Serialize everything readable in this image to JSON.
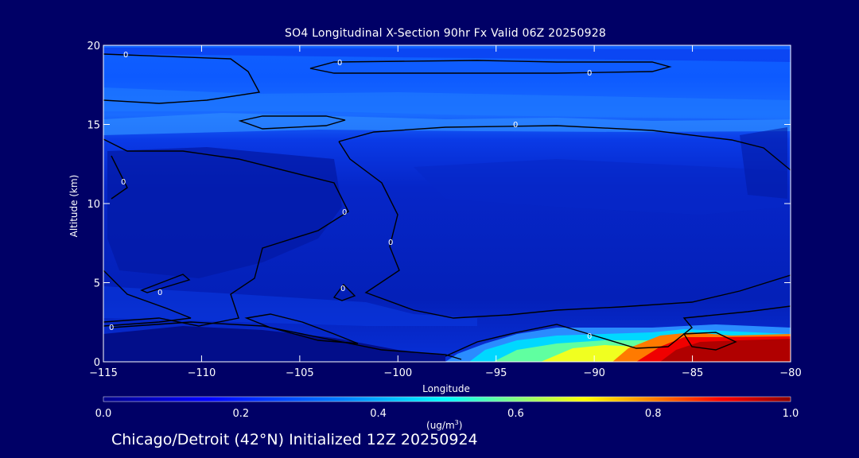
{
  "chart_data": {
    "type": "heatmap",
    "title": "SO4 Longitudinal X-Section 90hr  Fx Valid 06Z 20250928",
    "xlabel": "Longitude",
    "ylabel": "Altitude (km)",
    "xlim": [
      -115,
      -80
    ],
    "ylim": [
      0,
      20
    ],
    "x_ticks": [
      -115,
      -110,
      -105,
      -100,
      -95,
      -90,
      -85,
      -80
    ],
    "x_tick_labels": [
      "−115",
      "−110",
      "−105",
      "−100",
      "−95",
      "−90",
      "−85",
      "−80"
    ],
    "y_ticks": [
      0,
      5,
      10,
      15,
      20
    ],
    "y_tick_labels": [
      "0",
      "5",
      "10",
      "15",
      "20"
    ],
    "colorbar": {
      "min": 0.0,
      "max": 1.0,
      "ticks": [
        "0.0",
        "0.2",
        "0.4",
        "0.6",
        "0.8",
        "1.0"
      ],
      "tick_values": [
        0.0,
        0.2,
        0.4,
        0.6,
        0.8,
        1.0
      ],
      "label": "ug/m",
      "label_exponent": "3",
      "colors": [
        "#00008b",
        "#0000ff",
        "#0080ff",
        "#00ffff",
        "#80ff80",
        "#ffff00",
        "#ff8000",
        "#ff0000",
        "#8b0000"
      ]
    },
    "regions": [
      {
        "name": "upper-band",
        "x": [
          -115,
          -80
        ],
        "y": [
          15.5,
          19.5
        ],
        "value": 0.2
      },
      {
        "name": "upper-band-light",
        "x": [
          -112,
          -95
        ],
        "y": [
          15,
          15.6
        ],
        "value": 0.26
      },
      {
        "name": "left-lower-block",
        "x": [
          -115,
          -107
        ],
        "y": [
          0,
          1.8
        ],
        "value": 0.02
      },
      {
        "name": "mid-left-dark",
        "x": [
          -115,
          -103
        ],
        "y": [
          6,
          13
        ],
        "value": 0.05
      },
      {
        "name": "surface-plume-cyan",
        "x": [
          -96,
          -89
        ],
        "y": [
          0,
          1.4
        ],
        "value": 0.45
      },
      {
        "name": "surface-plume-yellow",
        "x": [
          -92,
          -88
        ],
        "y": [
          0,
          0.9
        ],
        "value": 0.65
      },
      {
        "name": "surface-plume-red",
        "x": [
          -88,
          -80
        ],
        "y": [
          0,
          1.6
        ],
        "value": 0.95
      }
    ],
    "contour_labels": [
      "0",
      "0",
      "0",
      "0",
      "0",
      "0",
      "0",
      "0",
      "0",
      "0",
      "0"
    ],
    "footer": "Chicago/Detroit (42°N) Initialized 12Z 20250924"
  }
}
